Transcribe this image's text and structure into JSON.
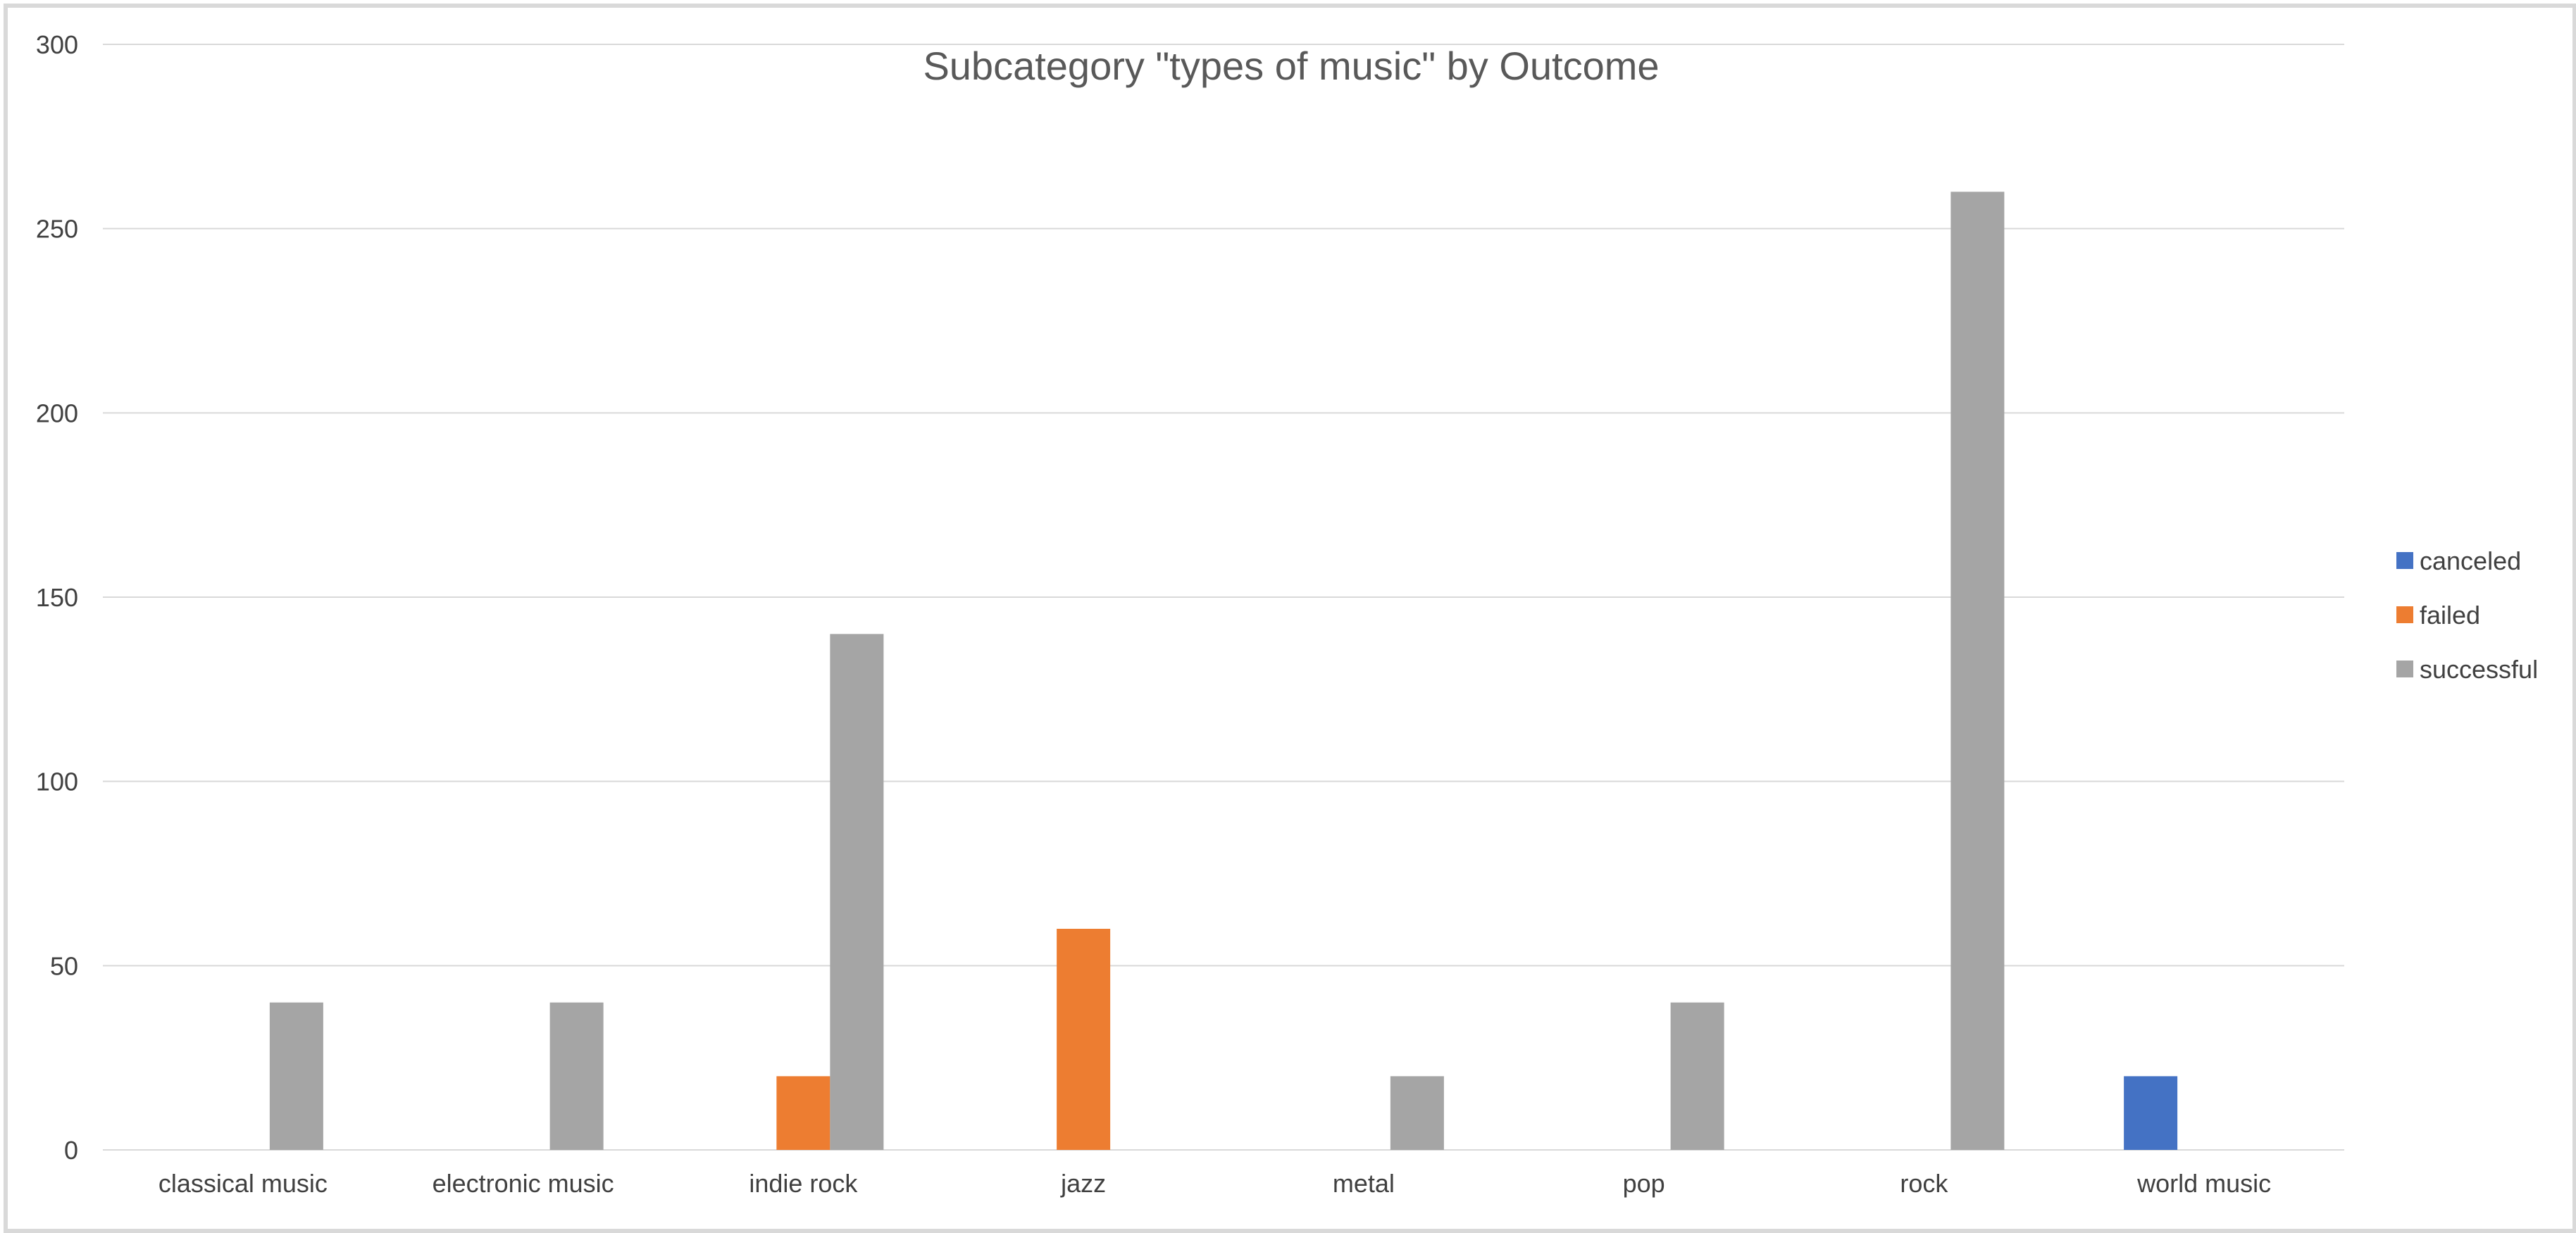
{
  "chart_data": {
    "type": "bar",
    "title": "Subcategory \"types of music\" by Outcome",
    "xlabel": "",
    "ylabel": "",
    "categories": [
      "classical music",
      "electronic music",
      "indie rock",
      "jazz",
      "metal",
      "pop",
      "rock",
      "world music"
    ],
    "series": [
      {
        "name": "canceled",
        "color": "#4472c4",
        "values": [
          0,
          0,
          0,
          0,
          0,
          0,
          0,
          20
        ]
      },
      {
        "name": "failed",
        "color": "#ed7d31",
        "values": [
          0,
          0,
          20,
          60,
          0,
          0,
          0,
          0
        ]
      },
      {
        "name": "successful",
        "color": "#a5a5a5",
        "values": [
          40,
          40,
          140,
          0,
          20,
          40,
          260,
          0
        ]
      }
    ],
    "ylim": [
      0,
      300
    ],
    "yticks": [
      0,
      50,
      100,
      150,
      200,
      250,
      300
    ],
    "grid": true,
    "legend_position": "right"
  }
}
